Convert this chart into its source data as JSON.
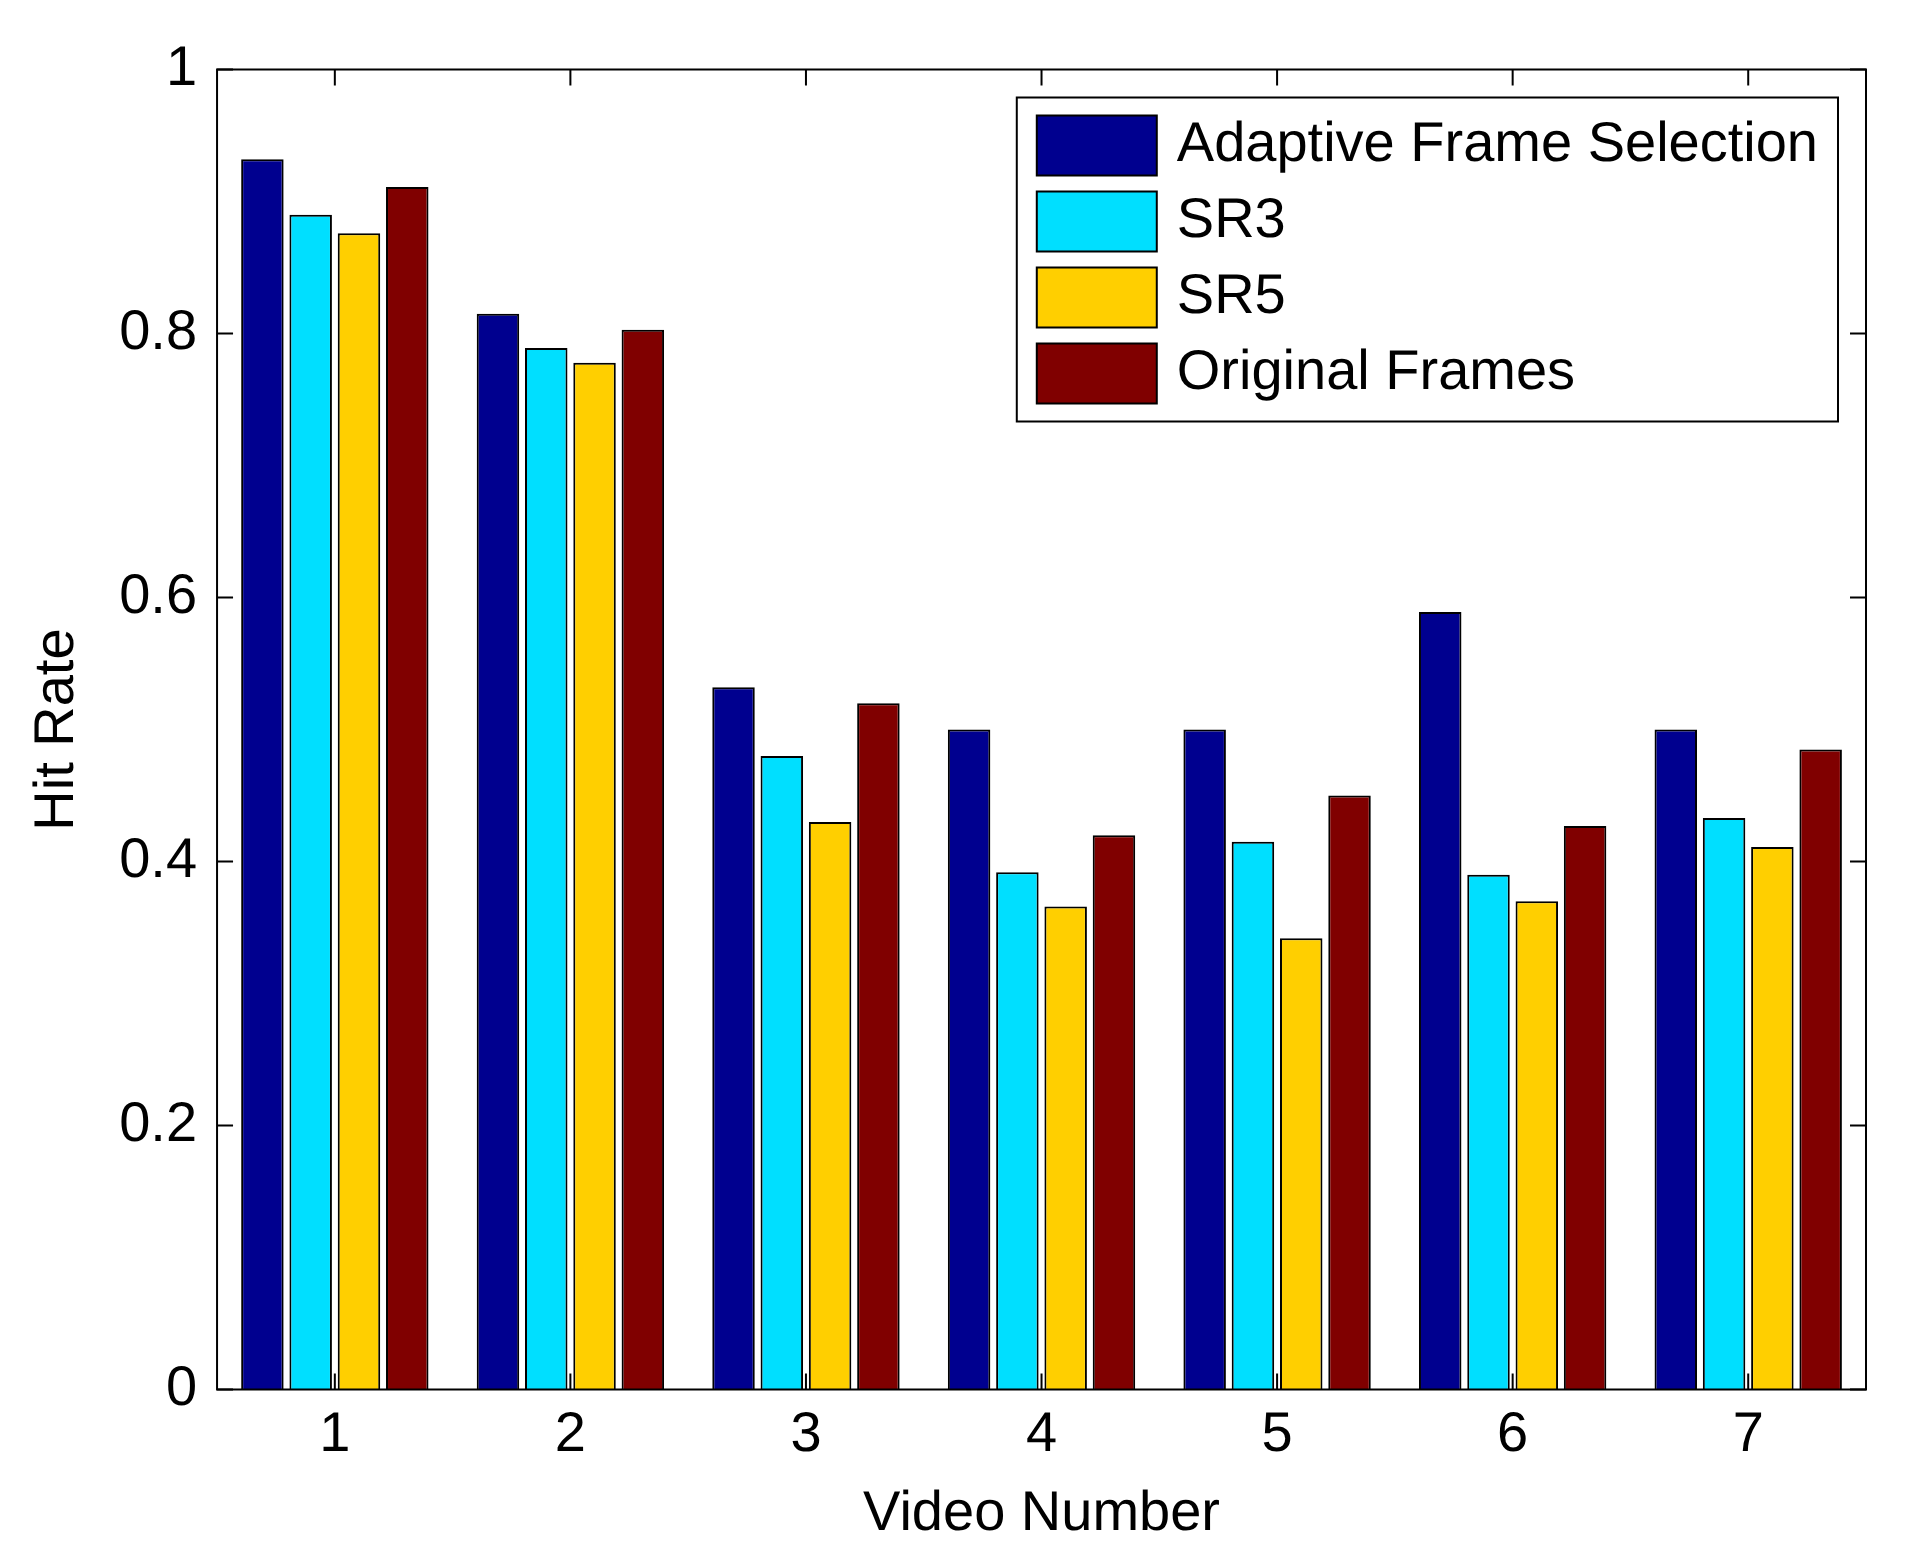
{
  "chart_data": {
    "type": "bar",
    "xlabel": "Video Number",
    "ylabel": "Hit Rate",
    "categories": [
      "1",
      "2",
      "3",
      "4",
      "5",
      "6",
      "7"
    ],
    "series": [
      {
        "name": "Adaptive Frame Selection",
        "color": "#00008f",
        "values": [
          0.932,
          0.815,
          0.532,
          0.5,
          0.5,
          0.589,
          0.5
        ]
      },
      {
        "name": "SR3",
        "color": "#00dfff",
        "values": [
          0.89,
          0.789,
          0.48,
          0.392,
          0.415,
          0.39,
          0.433
        ]
      },
      {
        "name": "SR5",
        "color": "#ffcf00",
        "values": [
          0.876,
          0.778,
          0.43,
          0.366,
          0.342,
          0.37,
          0.411
        ]
      },
      {
        "name": "Original Frames",
        "color": "#800000",
        "values": [
          0.911,
          0.803,
          0.52,
          0.42,
          0.45,
          0.427,
          0.485
        ]
      }
    ],
    "ylim": [
      0,
      1
    ],
    "yticks": [
      0,
      0.2,
      0.4,
      0.6,
      0.8,
      1
    ],
    "grid": false,
    "legend": "top right"
  }
}
